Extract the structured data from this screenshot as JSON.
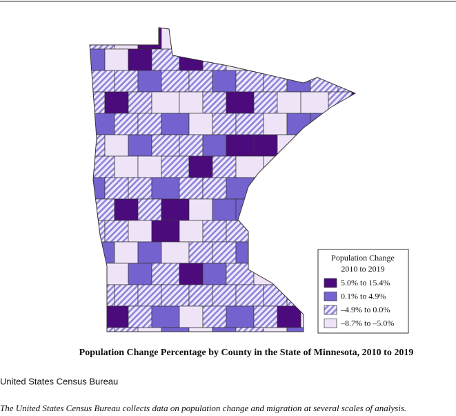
{
  "map": {
    "legend": {
      "title": [
        "Population Change",
        "2010 to 2019"
      ],
      "items": [
        {
          "label": "5.0% to 15.4%",
          "color": "#4b0b7c"
        },
        {
          "label": "0.1% to 4.9%",
          "color": "#7462cf"
        },
        {
          "label": "–4.9% to 0.0%",
          "color": "#8f7fd9",
          "pattern": "hatch"
        },
        {
          "label": "–8.7% to –5.0%",
          "color": "#efe4f7"
        }
      ]
    },
    "caption": "Population Change Percentage by County in the State of Minnesota, 2010 to 2019",
    "source": "United States Census Bureau",
    "description": "The United States Census Bureau collects data on population change and migration at several scales of analysis."
  }
}
